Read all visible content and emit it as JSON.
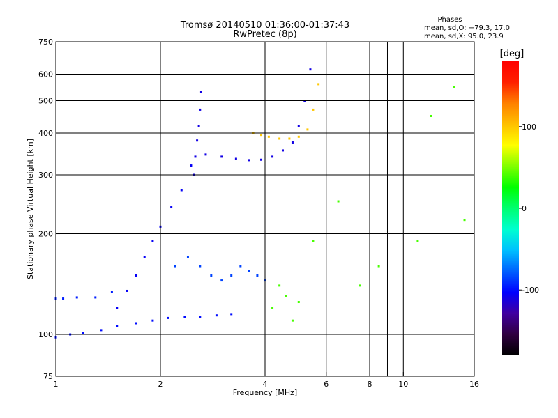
{
  "header": {
    "title_line1": "Tromsø 20140510 01:36:00-01:37:43",
    "title_line2": "RwPretec (8p)"
  },
  "stats": {
    "title": "Phases",
    "line1": "mean, sd,O: −79.3, 17.0",
    "line2": "mean, sd,X:  95.0, 23.9"
  },
  "chart_data": {
    "type": "scatter",
    "xlabel": "Frequency [MHz]",
    "ylabel": "Stationary phase Virtual Height [km]",
    "x_scale": "log",
    "y_scale": "log",
    "xlim": [
      1,
      16
    ],
    "ylim": [
      75,
      750
    ],
    "x_ticks": [
      1,
      2,
      4,
      6,
      8,
      10,
      16
    ],
    "x_tick_labels": [
      "1",
      "2",
      "4",
      "6",
      "8",
      "10",
      "16"
    ],
    "x_minor_gridlines": [
      9
    ],
    "y_ticks": [
      75,
      100,
      200,
      300,
      400,
      500,
      600,
      750
    ],
    "y_tick_labels": [
      "75",
      "100",
      "200",
      "300",
      "400",
      "500",
      "600",
      "750"
    ],
    "grid": true,
    "colorbar": {
      "label": "[deg]",
      "range": [
        -180,
        180
      ],
      "ticks": [
        100,
        0,
        -100
      ],
      "tick_labels": [
        "100",
        "0",
        "-100"
      ],
      "colors": [
        "#000000",
        "#300040",
        "#4000a0",
        "#0000ff",
        "#0060ff",
        "#00c0ff",
        "#00ffd0",
        "#00ff70",
        "#00ff00",
        "#80ff00",
        "#ffff00",
        "#ffc000",
        "#ff8000",
        "#ff2000",
        "#ff0000"
      ]
    },
    "series": [
      {
        "trace": "o-low-band",
        "phase": -100,
        "x": [
          1.0,
          1.1,
          1.2,
          1.35,
          1.5,
          1.7,
          1.9,
          2.1,
          2.35,
          2.6,
          2.9,
          3.2
        ],
        "y": [
          98,
          100,
          101,
          103,
          106,
          108,
          110,
          112,
          113,
          113,
          114,
          115
        ]
      },
      {
        "trace": "o-e-region-upper",
        "phase": -95,
        "x": [
          1.0,
          1.05,
          1.15,
          1.3,
          1.45
        ],
        "y": [
          128,
          128,
          129,
          129,
          134
        ]
      },
      {
        "trace": "o-cloud-rising",
        "phase": -105,
        "x": [
          1.5,
          1.6,
          1.7,
          1.8,
          1.9,
          2.0,
          2.15,
          2.3,
          2.45
        ],
        "y": [
          120,
          135,
          150,
          170,
          190,
          210,
          240,
          270,
          320
        ]
      },
      {
        "trace": "o-cusp-vertical",
        "phase": -110,
        "x": [
          2.5,
          2.52,
          2.55,
          2.58,
          2.6,
          2.62
        ],
        "y": [
          300,
          340,
          380,
          420,
          470,
          530
        ]
      },
      {
        "trace": "o-f-trace",
        "phase": -110,
        "x": [
          2.7,
          3.0,
          3.3,
          3.6,
          3.9,
          4.2,
          4.5,
          4.8,
          5.0,
          5.2,
          5.4
        ],
        "y": [
          345,
          340,
          335,
          332,
          333,
          340,
          355,
          375,
          420,
          500,
          620
        ]
      },
      {
        "trace": "x-f-trace",
        "phase": 100,
        "x": [
          3.7,
          3.9,
          4.1,
          4.4,
          4.7,
          5.0,
          5.3,
          5.5,
          5.7
        ],
        "y": [
          400,
          395,
          390,
          385,
          385,
          390,
          410,
          470,
          560
        ]
      },
      {
        "trace": "o-scatter-mid",
        "phase": -85,
        "x": [
          2.2,
          2.4,
          2.6,
          2.8,
          3.0,
          3.2,
          3.4,
          3.6,
          3.8,
          4.0
        ],
        "y": [
          160,
          170,
          160,
          150,
          145,
          150,
          160,
          155,
          150,
          145
        ]
      },
      {
        "trace": "mixed-spread",
        "phase": 40,
        "x": [
          4.2,
          4.4,
          4.6,
          4.8,
          5.0,
          5.5,
          6.5,
          7.5,
          8.5,
          11.0,
          12.0,
          14.0,
          15.0
        ],
        "y": [
          120,
          140,
          130,
          110,
          125,
          190,
          250,
          140,
          160,
          190,
          450,
          550,
          220
        ]
      }
    ]
  }
}
